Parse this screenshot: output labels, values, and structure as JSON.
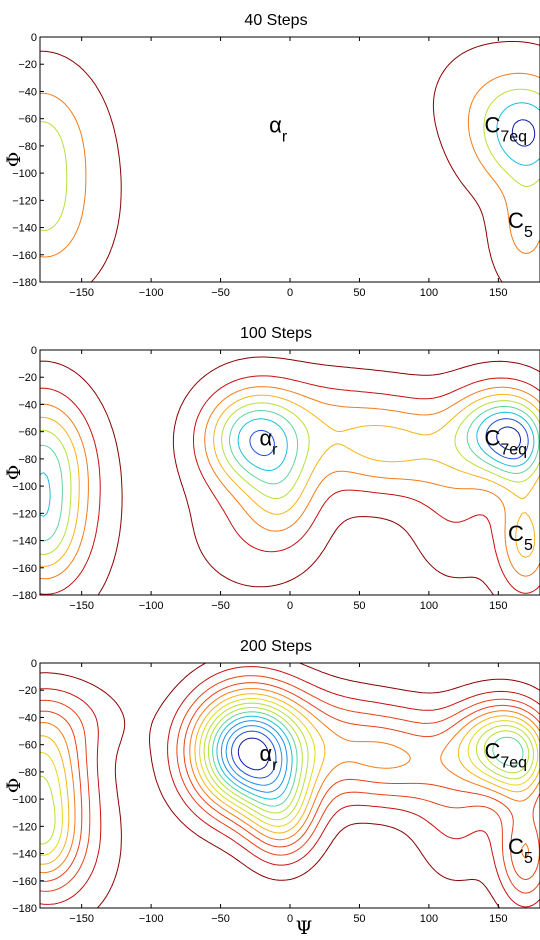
{
  "figure": {
    "xlabel": "Ψ",
    "ylabel": "Φ",
    "colors": {
      "contour_scale": [
        "#8b0000",
        "#c81010",
        "#e8401a",
        "#f47a18",
        "#f4b41a",
        "#e6d81c",
        "#b6e03a",
        "#5fd49b",
        "#19bfd6",
        "#1f8fe6",
        "#1c50d8",
        "#0a1aa8"
      ]
    }
  },
  "chart_data": [
    {
      "type": "contour",
      "title": "40 Steps",
      "xlabel": "",
      "ylabel": "Φ",
      "xlim": [
        -180,
        180
      ],
      "ylim": [
        -180,
        0
      ],
      "xticks": [
        -150,
        -100,
        -50,
        0,
        50,
        100,
        150
      ],
      "yticks": [
        0,
        -20,
        -40,
        -60,
        -80,
        -100,
        -120,
        -140,
        -160,
        -180
      ],
      "levels": 5,
      "basins": [
        {
          "x": -180,
          "y": -75,
          "sx": 22,
          "sy": 30,
          "amp": 0.6
        },
        {
          "x": -180,
          "y": -130,
          "sx": 18,
          "sy": 26,
          "amp": 0.45
        },
        {
          "x": 165,
          "y": -70,
          "sx": 22,
          "sy": 25,
          "amp": 1.0
        },
        {
          "x": 170,
          "y": -140,
          "sx": 14,
          "sy": 26,
          "amp": 0.45
        },
        {
          "x": 180,
          "y": -75,
          "sx": 18,
          "sy": 30,
          "amp": 0.3
        },
        {
          "x": -165,
          "y": -120,
          "sx": 25,
          "sy": 40,
          "amp": 0.25
        },
        {
          "x": 140,
          "y": -45,
          "sx": 25,
          "sy": 25,
          "amp": 0.15
        }
      ],
      "annotations": [
        {
          "base": "α",
          "sub": "r",
          "x": -15,
          "y": -65
        },
        {
          "base": "C",
          "sub": "7eq",
          "x": 140,
          "y": -65
        },
        {
          "base": "C",
          "sub": "5",
          "x": 157,
          "y": -135
        }
      ]
    },
    {
      "type": "contour",
      "title": "100 Steps",
      "xlabel": "",
      "ylabel": "Φ",
      "xlim": [
        -180,
        180
      ],
      "ylim": [
        -180,
        0
      ],
      "xticks": [
        -150,
        -100,
        -50,
        0,
        50,
        100,
        150
      ],
      "yticks": [
        0,
        -20,
        -40,
        -60,
        -80,
        -100,
        -120,
        -140,
        -160,
        -180
      ],
      "levels": 9,
      "basins": [
        {
          "x": -180,
          "y": -80,
          "sx": 22,
          "sy": 32,
          "amp": 0.7
        },
        {
          "x": -180,
          "y": -135,
          "sx": 18,
          "sy": 26,
          "amp": 0.5
        },
        {
          "x": -165,
          "y": -120,
          "sx": 25,
          "sy": 45,
          "amp": 0.25
        },
        {
          "x": -25,
          "y": -65,
          "sx": 25,
          "sy": 25,
          "amp": 1.0
        },
        {
          "x": -5,
          "y": -105,
          "sx": 18,
          "sy": 25,
          "amp": 0.35
        },
        {
          "x": 70,
          "y": -70,
          "sx": 40,
          "sy": 25,
          "amp": 0.55
        },
        {
          "x": 150,
          "y": -60,
          "sx": 22,
          "sy": 22,
          "amp": 0.9
        },
        {
          "x": 168,
          "y": -72,
          "sx": 16,
          "sy": 22,
          "amp": 0.55
        },
        {
          "x": 170,
          "y": -140,
          "sx": 14,
          "sy": 28,
          "amp": 0.55
        },
        {
          "x": 120,
          "y": -115,
          "sx": 22,
          "sy": 35,
          "amp": 0.2
        },
        {
          "x": -25,
          "y": -130,
          "sx": 30,
          "sy": 30,
          "amp": 0.18
        },
        {
          "x": 20,
          "y": -45,
          "sx": 30,
          "sy": 20,
          "amp": 0.15
        }
      ],
      "annotations": [
        {
          "base": "α",
          "sub": "r",
          "x": -22,
          "y": -65
        },
        {
          "base": "C",
          "sub": "7eq",
          "x": 140,
          "y": -65
        },
        {
          "base": "C",
          "sub": "5",
          "x": 157,
          "y": -135
        }
      ]
    },
    {
      "type": "contour",
      "title": "200 Steps",
      "xlabel": "Ψ",
      "ylabel": "Φ",
      "xlim": [
        -180,
        180
      ],
      "ylim": [
        -180,
        0
      ],
      "xticks": [
        -150,
        -100,
        -50,
        0,
        50,
        100,
        150
      ],
      "yticks": [
        0,
        -20,
        -40,
        -60,
        -80,
        -100,
        -120,
        -140,
        -160,
        -180
      ],
      "levels": 15,
      "basins": [
        {
          "x": -180,
          "y": -80,
          "sx": 22,
          "sy": 30,
          "amp": 0.42
        },
        {
          "x": -180,
          "y": -130,
          "sx": 18,
          "sy": 24,
          "amp": 0.32
        },
        {
          "x": -30,
          "y": -65,
          "sx": 28,
          "sy": 30,
          "amp": 1.0
        },
        {
          "x": -5,
          "y": -110,
          "sx": 18,
          "sy": 25,
          "amp": 0.35
        },
        {
          "x": 70,
          "y": -70,
          "sx": 40,
          "sy": 25,
          "amp": 0.32
        },
        {
          "x": 150,
          "y": -60,
          "sx": 22,
          "sy": 22,
          "amp": 0.5
        },
        {
          "x": 168,
          "y": -72,
          "sx": 16,
          "sy": 22,
          "amp": 0.3
        },
        {
          "x": 170,
          "y": -140,
          "sx": 14,
          "sy": 28,
          "amp": 0.32
        },
        {
          "x": -170,
          "y": -40,
          "sx": 35,
          "sy": 20,
          "amp": 0.12
        },
        {
          "x": -165,
          "y": -135,
          "sx": 30,
          "sy": 40,
          "amp": 0.14
        },
        {
          "x": 120,
          "y": -115,
          "sx": 22,
          "sy": 35,
          "amp": 0.12
        },
        {
          "x": 20,
          "y": -45,
          "sx": 35,
          "sy": 22,
          "amp": 0.1
        }
      ],
      "annotations": [
        {
          "base": "α",
          "sub": "r",
          "x": -22,
          "y": -67
        },
        {
          "base": "C",
          "sub": "7eq",
          "x": 140,
          "y": -65
        },
        {
          "base": "C",
          "sub": "5",
          "x": 157,
          "y": -135
        }
      ]
    }
  ]
}
